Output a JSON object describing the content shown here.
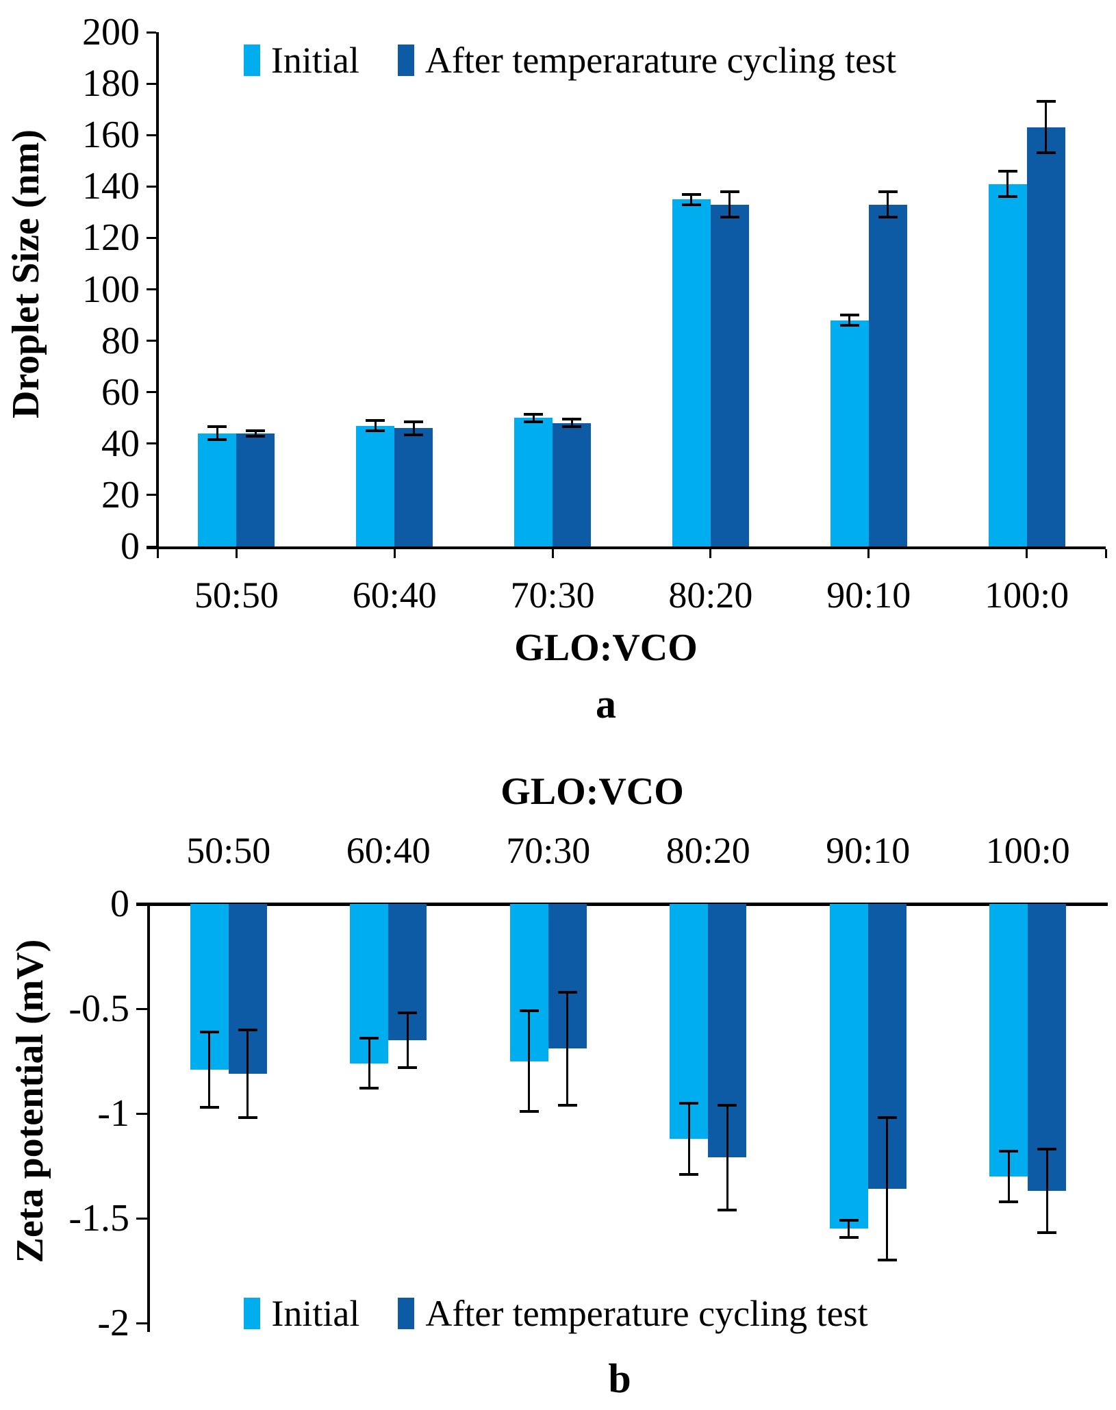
{
  "colors": {
    "initial": "#00AEEF",
    "after": "#0D5AA5",
    "axis": "#000000",
    "background": "#FFFFFF"
  },
  "chart_data": [
    {
      "type": "bar",
      "panel_label": "a",
      "ylabel": "Droplet Size (nm)",
      "xlabel": "GLO:VCO",
      "xlabel_position": "below",
      "legend_position": "top-inside",
      "grid": false,
      "error_bars": true,
      "categories": [
        "50:50",
        "60:40",
        "70:30",
        "80:20",
        "90:10",
        "100:0"
      ],
      "series": [
        {
          "name": "Initial",
          "color": "#00AEEF",
          "values": [
            44,
            47,
            50,
            135,
            88,
            141
          ],
          "errors": [
            2.5,
            2,
            1.5,
            2,
            2,
            5
          ]
        },
        {
          "name": "After temperarature cycling test",
          "color": "#0D5AA5",
          "values": [
            44,
            46,
            48,
            133,
            133,
            163
          ],
          "errors": [
            1,
            2.5,
            1.5,
            5,
            5,
            10
          ]
        }
      ],
      "ylim": [
        0,
        200
      ],
      "ytick_values": [
        0,
        20,
        40,
        60,
        80,
        100,
        120,
        140,
        160,
        180,
        200
      ],
      "ytick_labels": [
        "0",
        "20",
        "40",
        "60",
        "80",
        "100",
        "120",
        "140",
        "160",
        "180",
        "200"
      ]
    },
    {
      "type": "bar",
      "panel_label": "b",
      "ylabel": "Zeta potential (mV)",
      "xlabel": "GLO:VCO",
      "xlabel_position": "above",
      "legend_position": "bottom-inside",
      "grid": false,
      "error_bars": true,
      "categories": [
        "50:50",
        "60:40",
        "70:30",
        "80:20",
        "90:10",
        "100:0"
      ],
      "series": [
        {
          "name": "Initial",
          "color": "#00AEEF",
          "values": [
            -0.79,
            -0.76,
            -0.75,
            -1.12,
            -1.55,
            -1.3
          ],
          "errors": [
            0.18,
            0.12,
            0.24,
            0.17,
            0.04,
            0.12
          ]
        },
        {
          "name": "After temperature cycling test",
          "color": "#0D5AA5",
          "values": [
            -0.81,
            -0.65,
            -0.69,
            -1.21,
            -1.36,
            -1.37
          ],
          "errors": [
            0.21,
            0.13,
            0.27,
            0.25,
            0.34,
            0.2
          ]
        }
      ],
      "ylim": [
        -2,
        0
      ],
      "ytick_values": [
        0,
        -0.5,
        -1,
        -1.5,
        -2
      ],
      "ytick_labels": [
        "0",
        "-0.5",
        "-1",
        "-1.5",
        "-2"
      ]
    }
  ]
}
